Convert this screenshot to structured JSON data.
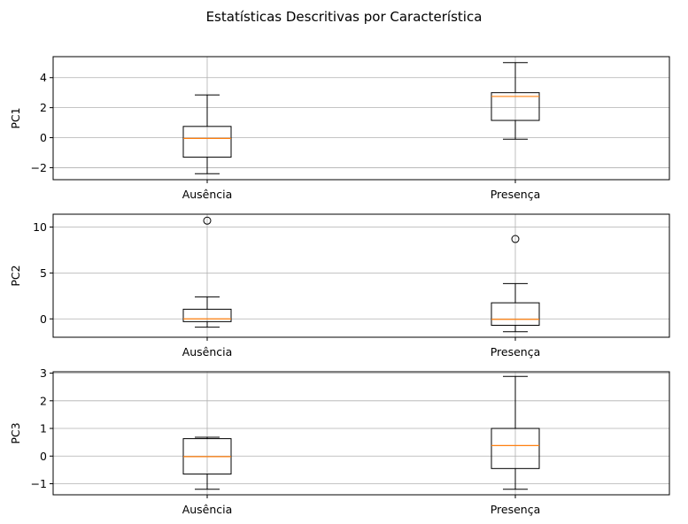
{
  "chart_data": {
    "type": "boxplot",
    "title": "Estatísticas Descritivas por Característica",
    "grid": true,
    "colors": {
      "box": "#000000",
      "median": "#ff7f0e",
      "grid": "#b0b0b0"
    },
    "subplots": [
      {
        "ylabel": "PC1",
        "categories": [
          "Ausência",
          "Presença"
        ],
        "ylim": [
          -2.8,
          5.4
        ],
        "yticks": [
          -2,
          0,
          2,
          4
        ],
        "boxes": [
          {
            "whislo": -2.4,
            "q1": -1.3,
            "med": -0.05,
            "q3": 0.75,
            "whishi": 2.85,
            "fliers": []
          },
          {
            "whislo": -0.1,
            "q1": 1.15,
            "med": 2.75,
            "q3": 3.0,
            "whishi": 5.0,
            "fliers": []
          }
        ]
      },
      {
        "ylabel": "PC2",
        "categories": [
          "Ausência",
          "Presença"
        ],
        "ylim": [
          -2.0,
          11.4
        ],
        "yticks": [
          0,
          5,
          10
        ],
        "boxes": [
          {
            "whislo": -0.9,
            "q1": -0.3,
            "med": 0.0,
            "q3": 1.05,
            "whishi": 2.4,
            "fliers": [
              10.7
            ]
          },
          {
            "whislo": -1.4,
            "q1": -0.7,
            "med": -0.05,
            "q3": 1.75,
            "whishi": 3.85,
            "fliers": [
              8.7
            ]
          }
        ]
      },
      {
        "ylabel": "PC3",
        "categories": [
          "Ausência",
          "Presença"
        ],
        "ylim": [
          -1.4,
          3.05
        ],
        "yticks": [
          -1,
          0,
          1,
          2,
          3
        ],
        "boxes": [
          {
            "whislo": -1.2,
            "q1": -0.65,
            "med": -0.02,
            "q3": 0.63,
            "whishi": 0.68,
            "fliers": []
          },
          {
            "whislo": -1.2,
            "q1": -0.45,
            "med": 0.38,
            "q3": 1.0,
            "whishi": 2.88,
            "fliers": []
          }
        ]
      }
    ]
  }
}
